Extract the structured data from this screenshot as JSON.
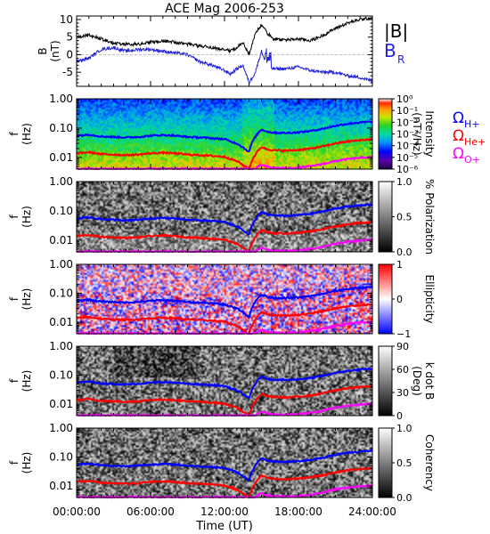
{
  "title": "ACE Mag 2006-253",
  "colors": {
    "B_total": "#000000",
    "B_R": "#2222dd",
    "omega_H": "#0000ff",
    "omega_He": "#ff0000",
    "omega_O": "#ff00ff"
  },
  "legend": {
    "b_total": "|B|",
    "b_r_main": "B",
    "b_r_sub": "R",
    "omega_symbol": "Ω",
    "omega_h_sub": "H+",
    "omega_he_sub": "He+",
    "omega_o_sub": "O+"
  },
  "x_axis": {
    "label": "Time (UT)",
    "ticks": [
      "00:00:00",
      "06:00:00",
      "12:00:00",
      "18:00:00",
      "24:00:00"
    ]
  },
  "chart_data": [
    {
      "type": "line",
      "ylabel": "B",
      "yunit": "(nT)",
      "x_range_hours": [
        0,
        24
      ],
      "ylim": [
        -9,
        11
      ],
      "yticks": [
        "10",
        "5",
        "0",
        "-5"
      ],
      "x": [
        0,
        1,
        2,
        3,
        4,
        5,
        6,
        7,
        8,
        9,
        10,
        11,
        12,
        12.5,
        13,
        13.5,
        14,
        14.5,
        15,
        15.5,
        16,
        17,
        18,
        19,
        20,
        21,
        22,
        23,
        24
      ],
      "series": [
        {
          "name": "|B|",
          "values": [
            5.0,
            5.5,
            4.5,
            3.2,
            3.0,
            3.0,
            3.5,
            4.0,
            3.5,
            3.0,
            2.5,
            2.0,
            1.5,
            1.0,
            2.0,
            3.5,
            0.0,
            6.0,
            8.5,
            6.0,
            4.5,
            4.2,
            4.5,
            4.0,
            5.5,
            7.5,
            9.0,
            10.0,
            10.5
          ]
        },
        {
          "name": "B_R",
          "values": [
            -2.0,
            -1.0,
            1.5,
            2.0,
            1.0,
            1.5,
            1.5,
            1.0,
            0.5,
            0.0,
            -2.0,
            -3.0,
            -4.5,
            -5.5,
            -4.0,
            -3.0,
            -8.0,
            -5.0,
            1.0,
            -3.5,
            -4.0,
            -4.0,
            -3.5,
            -4.5,
            -5.0,
            -5.0,
            -6.0,
            -6.5,
            -7.5
          ]
        }
      ]
    },
    {
      "type": "heatmap",
      "ylabel": "f",
      "yunit": "(Hz)",
      "yscale": "log",
      "ylim": [
        0.004,
        1.0
      ],
      "yticks": [
        "1.00",
        "0.10",
        "0.01"
      ],
      "colorbar_label": "Intensity",
      "colorbar_unit": "(nT²/Hz)",
      "colorbar_ticks": [
        "10⁰",
        "10⁻¹",
        "10⁻²",
        "10⁻³",
        "10⁻⁴",
        "10⁻⁵",
        "10⁻⁶"
      ],
      "colormap": "rainbow"
    },
    {
      "type": "heatmap",
      "ylabel": "f",
      "yunit": "(Hz)",
      "yscale": "log",
      "ylim": [
        0.004,
        1.0
      ],
      "yticks": [
        "1.00",
        "0.10",
        "0.01"
      ],
      "colorbar_label": "% Polarization",
      "colorbar_ticks": [
        "1.0",
        "0.5",
        "0.0"
      ],
      "colormap": "gray"
    },
    {
      "type": "heatmap",
      "ylabel": "f",
      "yunit": "(Hz)",
      "yscale": "log",
      "ylim": [
        0.004,
        1.0
      ],
      "yticks": [
        "1.00",
        "0.10",
        "0.01"
      ],
      "colorbar_label": "Ellipticity",
      "colorbar_ticks": [
        "1",
        "0",
        "−1"
      ],
      "colormap": "bluewhitered"
    },
    {
      "type": "heatmap",
      "ylabel": "f",
      "yunit": "(Hz)",
      "yscale": "log",
      "ylim": [
        0.004,
        1.0
      ],
      "yticks": [
        "1.00",
        "0.10",
        "0.01"
      ],
      "colorbar_label": "k dot B",
      "colorbar_unit": "(Deg)",
      "colorbar_ticks": [
        "90",
        "60",
        "30",
        "0"
      ],
      "colormap": "gray"
    },
    {
      "type": "heatmap",
      "ylabel": "f",
      "yunit": "(Hz)",
      "yscale": "log",
      "ylim": [
        0.004,
        1.0
      ],
      "yticks": [
        "1.00",
        "0.10",
        "0.01"
      ],
      "colorbar_label": "Coherency",
      "colorbar_ticks": [
        "1.0",
        "0.5",
        "0.0"
      ],
      "colormap": "gray"
    }
  ],
  "gyrofrequency_lines": {
    "x": [
      0,
      1,
      2,
      3,
      4,
      5,
      6,
      7,
      8,
      9,
      10,
      11,
      12,
      12.5,
      13,
      13.5,
      14,
      14.5,
      15,
      15.5,
      16,
      17,
      18,
      19,
      20,
      21,
      22,
      23,
      24
    ],
    "omega_H_plus_hz": [
      0.055,
      0.06,
      0.052,
      0.05,
      0.048,
      0.05,
      0.055,
      0.058,
      0.055,
      0.05,
      0.048,
      0.045,
      0.042,
      0.035,
      0.03,
      0.022,
      0.015,
      0.05,
      0.09,
      0.075,
      0.07,
      0.068,
      0.072,
      0.08,
      0.095,
      0.12,
      0.14,
      0.155,
      0.165
    ],
    "omega_He_plus_hz": [
      0.0138,
      0.015,
      0.013,
      0.0125,
      0.012,
      0.0125,
      0.0138,
      0.0145,
      0.0138,
      0.0125,
      0.012,
      0.0113,
      0.0105,
      0.0088,
      0.0075,
      0.0055,
      0.0038,
      0.0125,
      0.0225,
      0.0188,
      0.0175,
      0.017,
      0.018,
      0.02,
      0.0238,
      0.03,
      0.035,
      0.0388,
      0.0413
    ],
    "omega_O_plus_hz": [
      0.0041,
      0.0041,
      0.0041,
      0.0041,
      0.0041,
      0.0041,
      0.0041,
      0.0041,
      0.0041,
      0.0041,
      0.0041,
      0.0041,
      0.0041,
      0.0041,
      0.0041,
      0.0041,
      0.0041,
      0.0041,
      0.0056,
      0.0047,
      0.0044,
      0.0043,
      0.0045,
      0.005,
      0.006,
      0.0075,
      0.0088,
      0.0097,
      0.0103
    ]
  }
}
